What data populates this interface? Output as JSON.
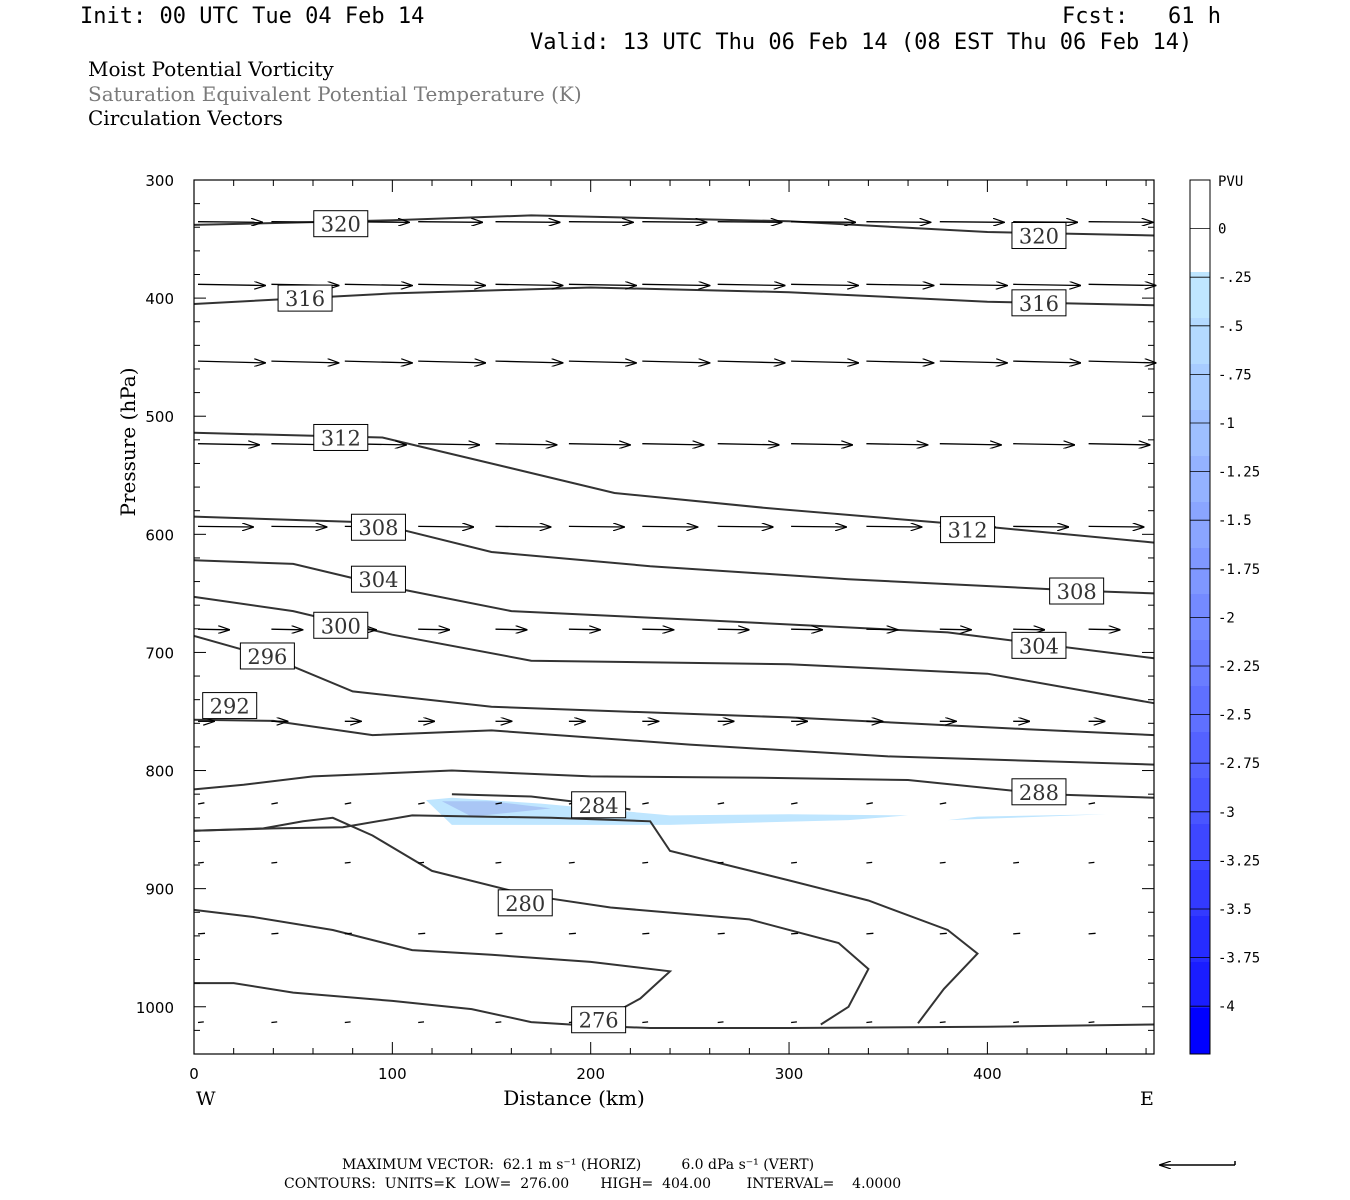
{
  "header": {
    "init": "Init: 00 UTC Tue 04 Feb 14",
    "fcst": "Fcst:   61 h",
    "valid": "Valid: 13 UTC Thu 06 Feb 14 (08 EST Thu 06 Feb 14)"
  },
  "legend": {
    "line1": "Moist Potential Vorticity",
    "line2": "Saturation Equivalent Potential Temperature (K)",
    "line3": "Circulation Vectors",
    "line2_color": "#7a7a7a"
  },
  "footer": {
    "max_vector": "MAXIMUM VECTOR:  62.1 m s⁻¹ (HORIZ)         6.0 dPa s⁻¹ (VERT)",
    "contours": "CONTOURS:  UNITS=K  LOW=  276.00       HIGH=  404.00        INTERVAL=    4.0000"
  },
  "chart_data": {
    "type": "cross-section",
    "xlabel": "Distance (km)",
    "ylabel": "Pressure (hPa)",
    "xlim": [
      0,
      484
    ],
    "ylim": [
      300,
      1040
    ],
    "y_log": false,
    "x_ticks": [
      "0",
      "100",
      "200",
      "300",
      "400"
    ],
    "x_tick_values": [
      0,
      100,
      200,
      300,
      400
    ],
    "y_ticks": [
      "300",
      "400",
      "500",
      "600",
      "700",
      "800",
      "900",
      "1000"
    ],
    "y_tick_values": [
      300,
      400,
      500,
      600,
      700,
      800,
      900,
      1000
    ],
    "end_labels": {
      "left": "W",
      "right": "E"
    },
    "colorbar": {
      "title": "PVU",
      "labels": [
        "0",
        "-.25",
        "-.5",
        "-.75",
        "-1",
        "-1.25",
        "-1.5",
        "-1.75",
        "-2",
        "-2.25",
        "-2.5",
        "-2.75",
        "-3",
        "-3.25",
        "-3.5",
        "-3.75",
        "-4"
      ],
      "colors": [
        "#ffffff",
        "#ffffff",
        "#bfe6ff",
        "#b4daff",
        "#a8ccff",
        "#9ebfff",
        "#94b2ff",
        "#8aa5ff",
        "#7f97ff",
        "#748aff",
        "#6a7dff",
        "#5f70ff",
        "#5462ff",
        "#4955ff",
        "#3e47ff",
        "#333aff",
        "#262cff",
        "#1a1dff",
        "#0000ff"
      ]
    },
    "contour_labels": [
      {
        "value": "320",
        "x": 74,
        "p": 337
      },
      {
        "value": "320",
        "x": 426,
        "p": 347
      },
      {
        "value": "316",
        "x": 56,
        "p": 400
      },
      {
        "value": "316",
        "x": 426,
        "p": 404
      },
      {
        "value": "312",
        "x": 74,
        "p": 518
      },
      {
        "value": "312",
        "x": 390,
        "p": 596
      },
      {
        "value": "308",
        "x": 93,
        "p": 594
      },
      {
        "value": "308",
        "x": 445,
        "p": 648
      },
      {
        "value": "304",
        "x": 93,
        "p": 638
      },
      {
        "value": "304",
        "x": 426,
        "p": 694
      },
      {
        "value": "300",
        "x": 74,
        "p": 677
      },
      {
        "value": "296",
        "x": 37,
        "p": 703
      },
      {
        "value": "292",
        "x": 18,
        "p": 745
      },
      {
        "value": "288",
        "x": 426,
        "p": 818
      },
      {
        "value": "284",
        "x": 204,
        "p": 829
      },
      {
        "value": "280",
        "x": 167,
        "p": 912
      },
      {
        "value": "276",
        "x": 204,
        "p": 1011
      }
    ],
    "contours": [
      {
        "value": 320,
        "points": [
          [
            0,
            338
          ],
          [
            100,
            334
          ],
          [
            170,
            330
          ],
          [
            300,
            335
          ],
          [
            400,
            344
          ],
          [
            484,
            347
          ]
        ]
      },
      {
        "value": 316,
        "points": [
          [
            0,
            405
          ],
          [
            100,
            396
          ],
          [
            200,
            391
          ],
          [
            300,
            395
          ],
          [
            400,
            403
          ],
          [
            484,
            406
          ]
        ]
      },
      {
        "value": 312,
        "points": [
          [
            0,
            514
          ],
          [
            95,
            518
          ],
          [
            150,
            540
          ],
          [
            212,
            565
          ],
          [
            290,
            578
          ],
          [
            390,
            592
          ],
          [
            484,
            607
          ]
        ]
      },
      {
        "value": 308,
        "points": [
          [
            0,
            585
          ],
          [
            90,
            590
          ],
          [
            150,
            615
          ],
          [
            230,
            627
          ],
          [
            330,
            638
          ],
          [
            450,
            648
          ],
          [
            484,
            650
          ]
        ]
      },
      {
        "value": 304,
        "points": [
          [
            0,
            622
          ],
          [
            50,
            625
          ],
          [
            100,
            645
          ],
          [
            160,
            665
          ],
          [
            260,
            673
          ],
          [
            380,
            683
          ],
          [
            484,
            705
          ]
        ]
      },
      {
        "value": 300,
        "points": [
          [
            0,
            653
          ],
          [
            50,
            665
          ],
          [
            100,
            685
          ],
          [
            170,
            707
          ],
          [
            300,
            710
          ],
          [
            400,
            718
          ],
          [
            484,
            743
          ]
        ]
      },
      {
        "value": 296,
        "points": [
          [
            0,
            686
          ],
          [
            40,
            705
          ],
          [
            80,
            733
          ],
          [
            150,
            746
          ],
          [
            300,
            755
          ],
          [
            420,
            765
          ],
          [
            484,
            770
          ]
        ]
      },
      {
        "value": 292,
        "points": [
          [
            0,
            757
          ],
          [
            40,
            758
          ],
          [
            90,
            770
          ],
          [
            150,
            766
          ],
          [
            250,
            778
          ],
          [
            350,
            788
          ],
          [
            484,
            795
          ]
        ]
      },
      {
        "value": 288,
        "points": [
          [
            0,
            816
          ],
          [
            25,
            812
          ],
          [
            60,
            805
          ],
          [
            130,
            800
          ],
          [
            200,
            805
          ],
          [
            280,
            806
          ],
          [
            360,
            808
          ],
          [
            430,
            820
          ],
          [
            484,
            823
          ]
        ]
      },
      {
        "value": 284,
        "points": [
          [
            0,
            851
          ],
          [
            35,
            849
          ],
          [
            55,
            843
          ],
          [
            70,
            840
          ],
          [
            90,
            855
          ],
          [
            120,
            885
          ],
          [
            170,
            906
          ],
          [
            210,
            916
          ],
          [
            280,
            926
          ],
          [
            325,
            946
          ],
          [
            340,
            968
          ],
          [
            330,
            1000
          ],
          [
            316,
            1015
          ]
        ]
      },
      {
        "value": 284,
        "points": [
          [
            0,
            980
          ],
          [
            20,
            980
          ],
          [
            50,
            988
          ],
          [
            100,
            995
          ],
          [
            140,
            1002
          ],
          [
            170,
            1013
          ],
          [
            200,
            1016
          ],
          [
            230,
            1018
          ],
          [
            300,
            1018
          ],
          [
            400,
            1017
          ],
          [
            484,
            1015
          ]
        ]
      },
      {
        "value": 280,
        "points": [
          [
            0,
            918
          ],
          [
            30,
            924
          ],
          [
            70,
            935
          ],
          [
            110,
            952
          ],
          [
            150,
            956
          ],
          [
            200,
            962
          ],
          [
            240,
            970
          ],
          [
            225,
            993
          ],
          [
            200,
            1016
          ]
        ]
      },
      {
        "value": 284,
        "points": [
          [
            0,
            851
          ],
          [
            40,
            849
          ],
          [
            75,
            848
          ],
          [
            110,
            838
          ],
          [
            180,
            840
          ],
          [
            230,
            843
          ],
          [
            240,
            868
          ],
          [
            300,
            893
          ],
          [
            340,
            910
          ],
          [
            380,
            935
          ],
          [
            395,
            955
          ],
          [
            378,
            985
          ],
          [
            365,
            1014
          ]
        ]
      },
      {
        "value": 284,
        "points": [
          [
            130,
            820
          ],
          [
            170,
            822
          ],
          [
            210,
            830
          ],
          [
            220,
            833
          ]
        ]
      }
    ],
    "shading": [
      {
        "pv_max": -0.25,
        "points": [
          [
            117,
            825
          ],
          [
            130,
            823
          ],
          [
            175,
            828
          ],
          [
            240,
            838
          ],
          [
            300,
            837
          ],
          [
            360,
            838
          ],
          [
            330,
            842
          ],
          [
            240,
            846
          ],
          [
            180,
            846
          ],
          [
            130,
            846
          ]
        ]
      },
      {
        "pv_max": -0.25,
        "points": [
          [
            395,
            839
          ],
          [
            460,
            837
          ],
          [
            380,
            842
          ]
        ]
      },
      {
        "pv_max": -0.5,
        "points": [
          [
            125,
            826
          ],
          [
            150,
            826
          ],
          [
            180,
            832
          ],
          [
            140,
            839
          ]
        ]
      }
    ],
    "vectors": [
      {
        "p": 337,
        "x": [
          0,
          37,
          74,
          111,
          150,
          187,
          224,
          262,
          299,
          337,
          374,
          411,
          449
        ],
        "u": 1.0,
        "w": -0.01
      },
      {
        "p": 390,
        "x": [
          0,
          37,
          74,
          111,
          150,
          187,
          224,
          262,
          299,
          337,
          374,
          411,
          449
        ],
        "u": 1.05,
        "w": -0.02
      },
      {
        "p": 455,
        "x": [
          0,
          37,
          74,
          111,
          150,
          187,
          224,
          262,
          299,
          337,
          374,
          411,
          449
        ],
        "u": 1.05,
        "w": -0.03
      },
      {
        "p": 525,
        "x": [
          0,
          37,
          74,
          111,
          150,
          187,
          224,
          262,
          299,
          337,
          374,
          411,
          449
        ],
        "u": 0.95,
        "w": -0.02
      },
      {
        "p": 595,
        "x": [
          0,
          37,
          74,
          111,
          150,
          187,
          224,
          262,
          299,
          337,
          374,
          411,
          449
        ],
        "u": 0.85,
        "w": -0.01
      },
      {
        "p": 682,
        "x": [
          0,
          37,
          74,
          111,
          150,
          187,
          224,
          262,
          299,
          337,
          374,
          411,
          449
        ],
        "u": 0.45,
        "w": -0.01
      },
      {
        "p": 760,
        "x": [
          0,
          37,
          74,
          111,
          150,
          187,
          224,
          262,
          299,
          337,
          374,
          411,
          449
        ],
        "u": 0.2,
        "w": 0.0
      },
      {
        "p": 830,
        "x": [
          0,
          37,
          74,
          111,
          150,
          187,
          224,
          262,
          299,
          337,
          374,
          411,
          449
        ],
        "u": 0.04,
        "w": 0.02
      },
      {
        "p": 880,
        "x": [
          0,
          37,
          74,
          111,
          150,
          187,
          224,
          262,
          299,
          337,
          374,
          411,
          449
        ],
        "u": 0.03,
        "w": 0.01
      },
      {
        "p": 940,
        "x": [
          0,
          37,
          74,
          111,
          150,
          187,
          224,
          262,
          299,
          337,
          374,
          411,
          449
        ],
        "u": 0.05,
        "w": 0.01
      },
      {
        "p": 1015,
        "x": [
          0,
          37,
          74,
          111,
          150,
          187,
          224,
          262,
          299,
          337,
          374,
          411,
          449
        ],
        "u": 0.03,
        "w": 0.01
      }
    ]
  }
}
